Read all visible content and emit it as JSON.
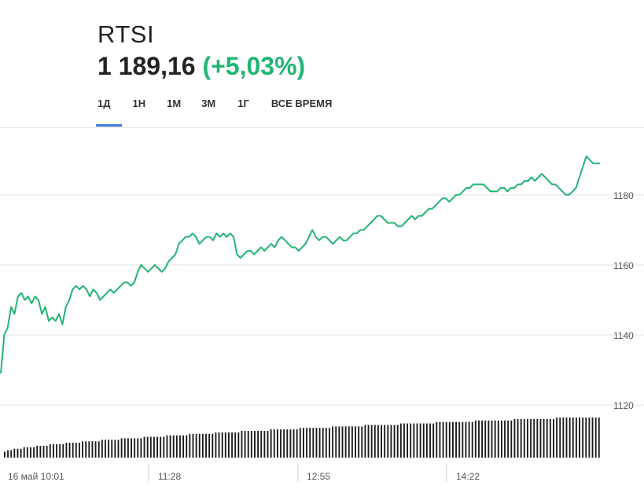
{
  "header": {
    "ticker": "RTSI",
    "price": "1 189,16",
    "change": "(+5,03%)"
  },
  "tabs": [
    {
      "label": "1Д",
      "active": true
    },
    {
      "label": "1Н",
      "active": false
    },
    {
      "label": "1М",
      "active": false
    },
    {
      "label": "3М",
      "active": false
    },
    {
      "label": "1Г",
      "active": false
    },
    {
      "label": "ВСЕ ВРЕМЯ",
      "active": false
    }
  ],
  "colors": {
    "line": "#21b573",
    "grid": "#e6e6e6",
    "volume": "#1a1a1a",
    "tab_underline": "#3c7ad9"
  },
  "chart_data": {
    "type": "line",
    "title": "",
    "xlabel": "",
    "ylabel": "",
    "ylim": [
      1107,
      1195
    ],
    "y_ticks": [
      "1120",
      "1140",
      "1160",
      "1180"
    ],
    "x_ticks": [
      "16 май 10:01",
      "11:28",
      "12:55",
      "14:22"
    ],
    "grid": true,
    "series": [
      {
        "values": [
          1129,
          1140,
          1142,
          1148,
          1146,
          1151,
          1152,
          1150,
          1151,
          1149,
          1151,
          1150,
          1146,
          1148,
          1144,
          1145,
          1144,
          1146,
          1143,
          1148,
          1150,
          1153,
          1154,
          1153,
          1154,
          1153,
          1151,
          1153,
          1152,
          1150,
          1151,
          1152,
          1153,
          1152,
          1153,
          1154,
          1155,
          1155,
          1154,
          1155,
          1158,
          1160,
          1159,
          1158,
          1159,
          1160,
          1159,
          1158,
          1159,
          1161,
          1162,
          1163,
          1166,
          1167,
          1168,
          1168,
          1169,
          1168,
          1166,
          1167,
          1168,
          1168,
          1167,
          1169,
          1168,
          1169,
          1168,
          1169,
          1168,
          1163,
          1162,
          1163,
          1164,
          1164,
          1163,
          1164,
          1165,
          1164,
          1165,
          1166,
          1165,
          1167,
          1168,
          1167,
          1166,
          1165,
          1165,
          1164,
          1165,
          1166,
          1168,
          1170,
          1168,
          1167,
          1168,
          1168,
          1167,
          1166,
          1167,
          1168,
          1167,
          1167,
          1168,
          1169,
          1169,
          1170,
          1170,
          1171,
          1172,
          1173,
          1174,
          1174,
          1173,
          1172,
          1172,
          1172,
          1171,
          1171,
          1172,
          1173,
          1174,
          1173,
          1174,
          1174,
          1175,
          1176,
          1176,
          1177,
          1178,
          1179,
          1179,
          1178,
          1179,
          1180,
          1180,
          1181,
          1182,
          1182,
          1183,
          1183,
          1183,
          1183,
          1182,
          1181,
          1181,
          1181,
          1182,
          1182,
          1181,
          1182,
          1182,
          1183,
          1183,
          1184,
          1184,
          1185,
          1184,
          1185,
          1186,
          1185,
          1184,
          1183,
          1183,
          1182,
          1181,
          1180,
          1180,
          1181,
          1182,
          1185,
          1188,
          1191,
          1190,
          1189,
          1189,
          1189
        ]
      }
    ],
    "volume": [
      4,
      5,
      5,
      6,
      6,
      6,
      7,
      7,
      7,
      7,
      8,
      8,
      8,
      8,
      9,
      9,
      9,
      9,
      9,
      10,
      10,
      10,
      10,
      10,
      11,
      11,
      11,
      11,
      11,
      11,
      12,
      12,
      12,
      12,
      12,
      12,
      13,
      13,
      13,
      13,
      13,
      13,
      13,
      14,
      14,
      14,
      14,
      14,
      14,
      14,
      15,
      15,
      15,
      15,
      15,
      15,
      15,
      16,
      16,
      16,
      16,
      16,
      16,
      16,
      16,
      17,
      17,
      17,
      17,
      17,
      17,
      17,
      17,
      18,
      18,
      18,
      18,
      18,
      18,
      18,
      18,
      18,
      19,
      19,
      19,
      19,
      19,
      19,
      19,
      19,
      19,
      20,
      20,
      20,
      20,
      20,
      20,
      20,
      20,
      20,
      20,
      21,
      21,
      21,
      21,
      21,
      21,
      21,
      21,
      21,
      21,
      22,
      22,
      22,
      22,
      22,
      22,
      22,
      22,
      22,
      22,
      22,
      23,
      23,
      23,
      23,
      23,
      23,
      23,
      23,
      23,
      23,
      23,
      24,
      24,
      24,
      24,
      24,
      24,
      24,
      24,
      24,
      24,
      24,
      24,
      25,
      25,
      25,
      25,
      25,
      25,
      25,
      25,
      25,
      25,
      25,
      25,
      26,
      26,
      26,
      26,
      26,
      26,
      26,
      26,
      26,
      26,
      26,
      26,
      26,
      27,
      27,
      27,
      27,
      27,
      27,
      27,
      27,
      27,
      27,
      27,
      27,
      27,
      27
    ]
  }
}
